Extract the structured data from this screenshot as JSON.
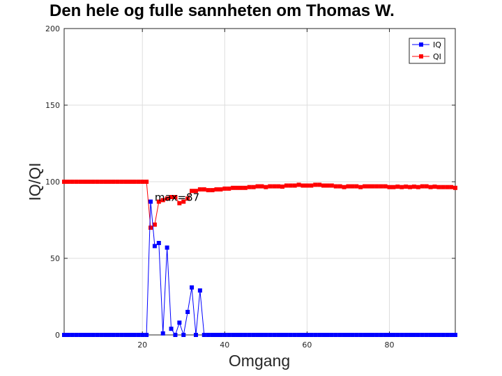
{
  "chart_data": {
    "type": "line",
    "title": "Den hele og fulle sannheten om Thomas W.",
    "xlabel": "Omgang",
    "ylabel": "IQ/QI",
    "xlim": [
      1,
      96
    ],
    "ylim": [
      0,
      200
    ],
    "xticks": [
      20,
      40,
      60,
      80
    ],
    "yticks": [
      0,
      50,
      100,
      150,
      200
    ],
    "grid": true,
    "legend_position": "top-right",
    "x": [
      1,
      2,
      3,
      4,
      5,
      6,
      7,
      8,
      9,
      10,
      11,
      12,
      13,
      14,
      15,
      16,
      17,
      18,
      19,
      20,
      21,
      22,
      23,
      24,
      25,
      26,
      27,
      28,
      29,
      30,
      31,
      32,
      33,
      34,
      35,
      36,
      37,
      38,
      39,
      40,
      41,
      42,
      43,
      44,
      45,
      46,
      47,
      48,
      49,
      50,
      51,
      52,
      53,
      54,
      55,
      56,
      57,
      58,
      59,
      60,
      61,
      62,
      63,
      64,
      65,
      66,
      67,
      68,
      69,
      70,
      71,
      72,
      73,
      74,
      75,
      76,
      77,
      78,
      79,
      80,
      81,
      82,
      83,
      84,
      85,
      86,
      87,
      88,
      89,
      90,
      91,
      92,
      93,
      94,
      95,
      96
    ],
    "series": [
      {
        "name": "IQ",
        "color": "#0000ff",
        "values": [
          0,
          0,
          0,
          0,
          0,
          0,
          0,
          0,
          0,
          0,
          0,
          0,
          0,
          0,
          0,
          0,
          0,
          0,
          0,
          0,
          0,
          87,
          58,
          60,
          1,
          57,
          4,
          0,
          8,
          0,
          15,
          31,
          0,
          29,
          0,
          0,
          0,
          0,
          0,
          0,
          0,
          0,
          0,
          0,
          0,
          0,
          0,
          0,
          0,
          0,
          0,
          0,
          0,
          0,
          0,
          0,
          0,
          0,
          0,
          0,
          0,
          0,
          0,
          0,
          0,
          0,
          0,
          0,
          0,
          0,
          0,
          0,
          0,
          0,
          0,
          0,
          0,
          0,
          0,
          0,
          0,
          0,
          0,
          0,
          0,
          0,
          0,
          0,
          0,
          0,
          0,
          0,
          0,
          0,
          0,
          0
        ]
      },
      {
        "name": "QI",
        "color": "#ff0000",
        "values": [
          100,
          100,
          100,
          100,
          100,
          100,
          100,
          100,
          100,
          100,
          100,
          100,
          100,
          100,
          100,
          100,
          100,
          100,
          100,
          100,
          100,
          70,
          72,
          87,
          88,
          89,
          90,
          90,
          86,
          87,
          89,
          94,
          94,
          95,
          95,
          94.5,
          94.5,
          95,
          95,
          95.5,
          95.5,
          96,
          96,
          96,
          96,
          96.5,
          96.5,
          97,
          97,
          96.5,
          97,
          97,
          97,
          96.8,
          97.5,
          97.5,
          97.5,
          98,
          97.5,
          97.5,
          97.5,
          98,
          98,
          97.5,
          97.5,
          97.5,
          97,
          97,
          96.5,
          97,
          97,
          97,
          96.5,
          97,
          97,
          97,
          97,
          97,
          97,
          96.5,
          96.5,
          96.8,
          96.5,
          96.8,
          96.5,
          96.8,
          96.5,
          97,
          97,
          96.5,
          96.8,
          96.5,
          96.5,
          96.5,
          96.5,
          96
        ]
      }
    ],
    "annotations": [
      {
        "text": "max=87",
        "x": 24,
        "y": 87
      }
    ]
  }
}
